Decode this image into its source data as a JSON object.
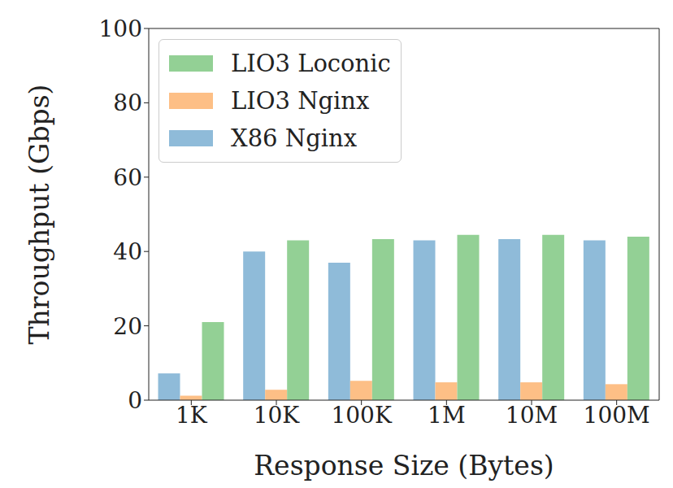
{
  "chart_data": {
    "type": "bar",
    "x_label": "Response Size (Bytes)",
    "y_label": "Throughput (Gbps)",
    "categories": [
      "1K",
      "10K",
      "100K",
      "1M",
      "10M",
      "100M"
    ],
    "series": [
      {
        "name": "X86 Nginx",
        "color": "#8fbbd9",
        "values": [
          7.2,
          40,
          37,
          43,
          43.3,
          43
        ]
      },
      {
        "name": "LIO3 Nginx",
        "color": "#fdbf86",
        "values": [
          1.2,
          2.8,
          5.2,
          4.8,
          4.8,
          4.3
        ]
      },
      {
        "name": "LIO3 Loconic",
        "color": "#93d095",
        "values": [
          21,
          43,
          43.3,
          44.5,
          44.5,
          44
        ]
      }
    ],
    "ylim": [
      0,
      100
    ],
    "yticks": [
      0,
      20,
      40,
      60,
      80,
      100
    ],
    "grid": false,
    "legend": "upper left"
  }
}
